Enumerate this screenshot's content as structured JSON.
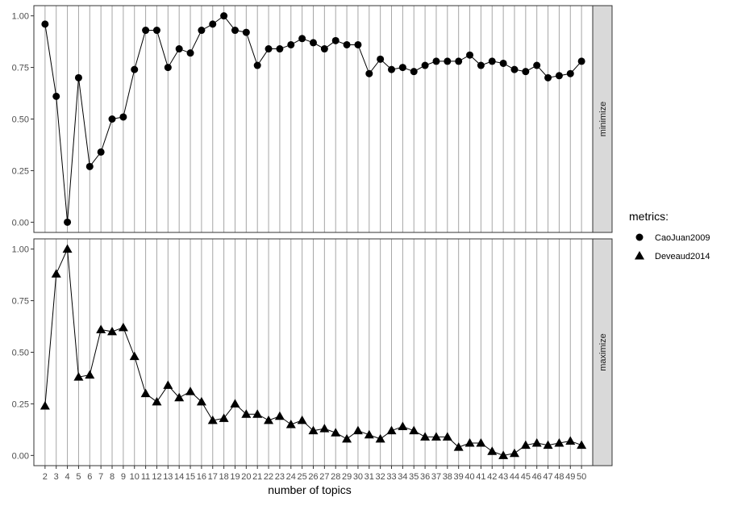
{
  "chart_data": {
    "type": "line",
    "xlabel": "number of topics",
    "x": [
      2,
      3,
      4,
      5,
      6,
      7,
      8,
      9,
      10,
      11,
      12,
      13,
      14,
      15,
      16,
      17,
      18,
      19,
      20,
      21,
      22,
      23,
      24,
      25,
      26,
      27,
      28,
      29,
      30,
      31,
      32,
      33,
      34,
      35,
      36,
      37,
      38,
      39,
      40,
      41,
      42,
      43,
      44,
      45,
      46,
      47,
      48,
      49,
      50
    ],
    "ylim": [
      0,
      1
    ],
    "yticks": [
      "0.00",
      "0.25",
      "0.50",
      "0.75",
      "1.00"
    ],
    "grid": "vertical",
    "legend": {
      "title": "metrics:",
      "placement": "right",
      "entries": [
        {
          "label": "CaoJuan2009",
          "shape": "circle"
        },
        {
          "label": "Deveaud2014",
          "shape": "triangle"
        }
      ]
    },
    "facets": [
      {
        "strip_label": "minimize",
        "series": [
          {
            "name": "CaoJuan2009",
            "shape": "circle",
            "values": [
              0.96,
              0.61,
              0.0,
              0.7,
              0.27,
              0.34,
              0.5,
              0.51,
              0.74,
              0.93,
              0.93,
              0.75,
              0.84,
              0.82,
              0.93,
              0.96,
              1.0,
              0.93,
              0.92,
              0.76,
              0.84,
              0.84,
              0.86,
              0.89,
              0.87,
              0.84,
              0.88,
              0.86,
              0.86,
              0.72,
              0.79,
              0.74,
              0.75,
              0.73,
              0.76,
              0.78,
              0.78,
              0.78,
              0.81,
              0.76,
              0.78,
              0.77,
              0.74,
              0.73,
              0.76,
              0.7,
              0.71,
              0.72,
              0.78
            ]
          }
        ]
      },
      {
        "strip_label": "maximize",
        "series": [
          {
            "name": "Deveaud2014",
            "shape": "triangle",
            "values": [
              0.24,
              0.88,
              1.0,
              0.38,
              0.39,
              0.61,
              0.6,
              0.62,
              0.48,
              0.3,
              0.26,
              0.34,
              0.28,
              0.31,
              0.26,
              0.17,
              0.18,
              0.25,
              0.2,
              0.2,
              0.17,
              0.19,
              0.15,
              0.17,
              0.12,
              0.13,
              0.11,
              0.08,
              0.12,
              0.1,
              0.08,
              0.12,
              0.14,
              0.12,
              0.09,
              0.09,
              0.09,
              0.04,
              0.06,
              0.06,
              0.02,
              0.0,
              0.01,
              0.05,
              0.06,
              0.05,
              0.06,
              0.07,
              0.05
            ]
          }
        ]
      }
    ]
  },
  "colors": {
    "panel_border": "#333333",
    "grid": "#a6a6a6",
    "strip_fill": "#d9d9d9",
    "marker": "#000000",
    "axis_text": "#4d4d4d"
  }
}
